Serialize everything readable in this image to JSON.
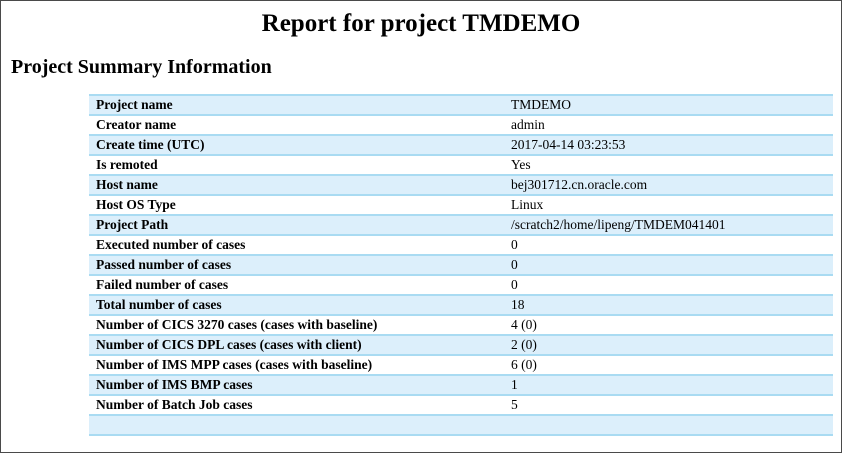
{
  "header": {
    "title": "Report for project TMDEMO"
  },
  "section": {
    "heading": "Project Summary Information"
  },
  "summary_table": {
    "rows": [
      {
        "label": "Project name",
        "value": "TMDEMO"
      },
      {
        "label": "Creator name",
        "value": "admin"
      },
      {
        "label": "Create time (UTC)",
        "value": "2017-04-14 03:23:53"
      },
      {
        "label": "Is remoted",
        "value": "Yes"
      },
      {
        "label": "Host name",
        "value": "bej301712.cn.oracle.com"
      },
      {
        "label": "Host OS Type",
        "value": "Linux"
      },
      {
        "label": "Project Path",
        "value": "/scratch2/home/lipeng/TMDEM041401"
      },
      {
        "label": "Executed number of cases",
        "value": "0"
      },
      {
        "label": "Passed number of cases",
        "value": "0"
      },
      {
        "label": "Failed number of cases",
        "value": "0"
      },
      {
        "label": "Total number of cases",
        "value": "18"
      },
      {
        "label": "Number of CICS 3270 cases (cases with baseline)",
        "value": "4 (0)"
      },
      {
        "label": "Number of CICS DPL cases (cases with client)",
        "value": "2 (0)"
      },
      {
        "label": "Number of IMS MPP cases (cases with baseline)",
        "value": "6 (0)"
      },
      {
        "label": "Number of IMS BMP cases",
        "value": "1"
      },
      {
        "label": "Number of Batch Job cases",
        "value": "5"
      }
    ]
  },
  "colors": {
    "row_highlight": "#dceffb",
    "row_border": "#a9dbf2",
    "frame_border": "#4a4a4a",
    "text": "#000000"
  }
}
